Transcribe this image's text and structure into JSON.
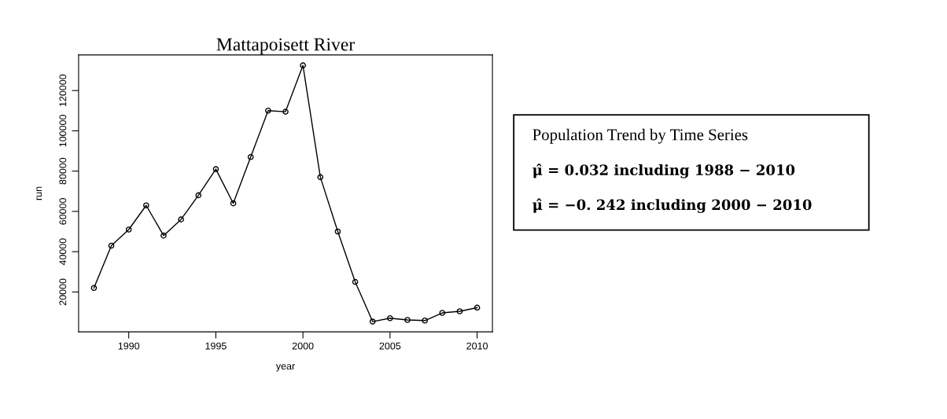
{
  "chart_data": {
    "type": "line",
    "title": "Mattapoisett River",
    "xlabel": "year",
    "ylabel": "run",
    "x": [
      1988,
      1989,
      1990,
      1991,
      1992,
      1993,
      1994,
      1995,
      1996,
      1997,
      1998,
      1999,
      2000,
      2001,
      2002,
      2003,
      2004,
      2005,
      2006,
      2007,
      2008,
      2009,
      2010
    ],
    "series": [
      {
        "color": "#000000",
        "values": [
          22000,
          43000,
          51000,
          63000,
          48000,
          56000,
          68000,
          81000,
          64000,
          87000,
          110000,
          109500,
          132500,
          77000,
          50000,
          25000,
          5300,
          7000,
          6100,
          5800,
          9600,
          10400,
          12200
        ]
      }
    ],
    "marker": "circle",
    "line_style": "solid",
    "grid": false,
    "xlim": [
      1987.12,
      2010.88
    ],
    "ylim": [
      200,
      137700
    ],
    "xticks": [
      1990,
      1995,
      2000,
      2005,
      2010
    ],
    "yticks": [
      20000,
      40000,
      60000,
      80000,
      100000,
      120000
    ],
    "annotations": [
      "Population Trend by Time Series",
      "μ̂ = 0.032 including 1988 − 2010",
      "μ̂ = −0. 242 including 2000 − 2010"
    ]
  }
}
